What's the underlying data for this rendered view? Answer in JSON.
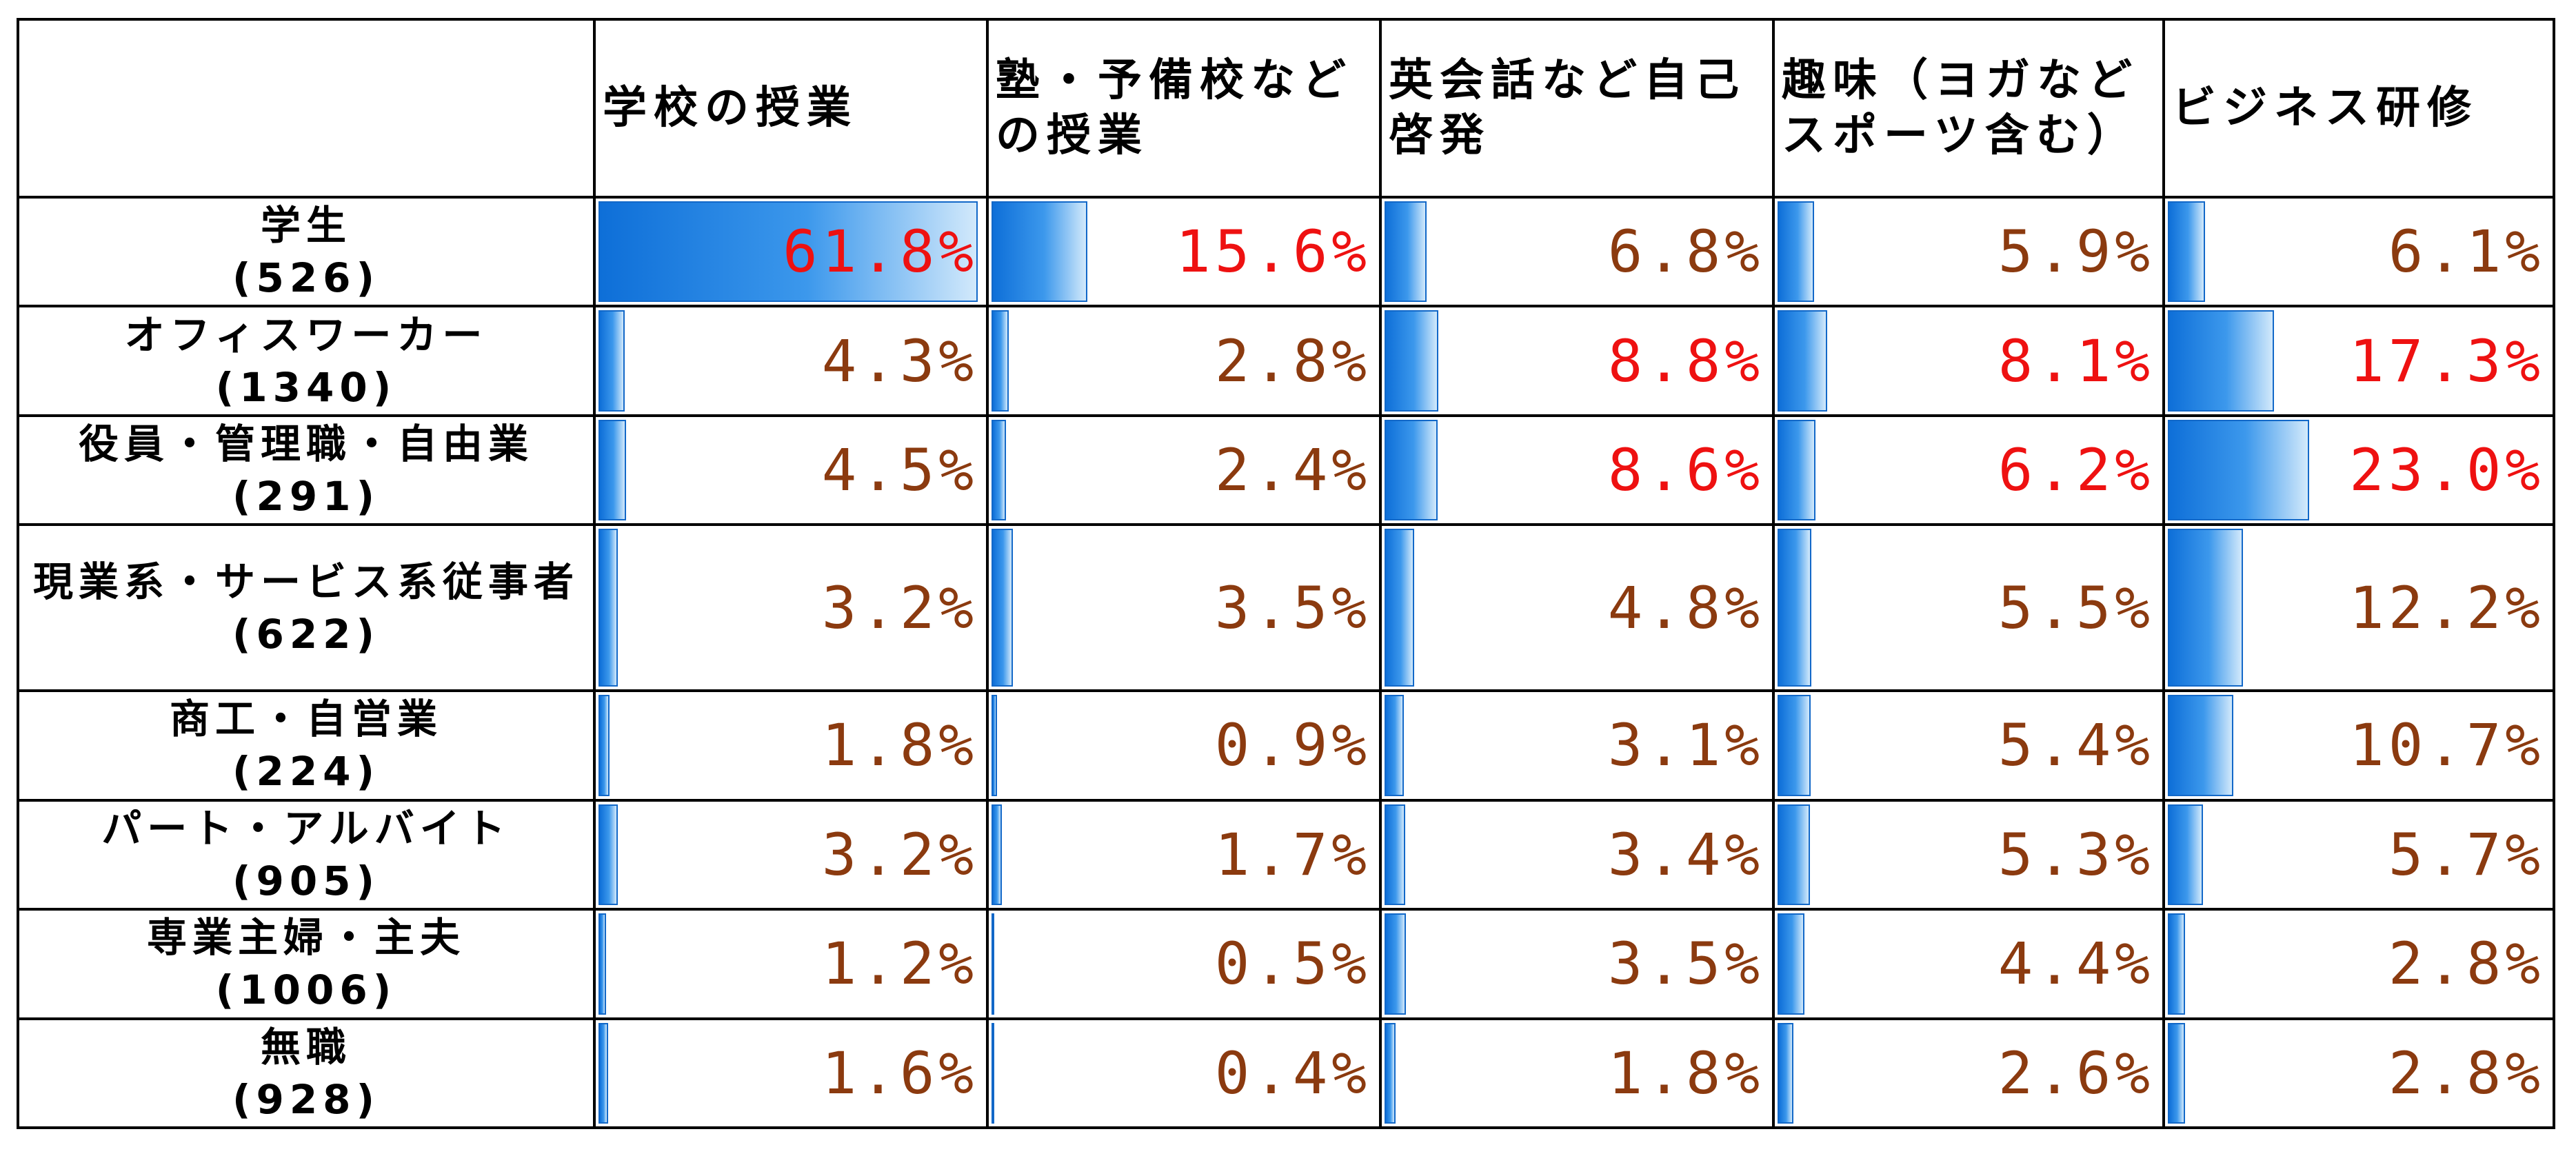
{
  "chart_data": {
    "type": "table",
    "columns": [
      "学校の授業",
      "塾・予備校などの授業",
      "英会話など自己啓発",
      "趣味（ヨガなどスポーツ含む）",
      "ビジネス研修"
    ],
    "rows": [
      {
        "name": "学生",
        "n": "(526)",
        "labels": [
          "61.8%",
          "15.6%",
          "6.8%",
          "5.9%",
          "6.1%"
        ],
        "values": [
          61.8,
          15.6,
          6.8,
          5.9,
          6.1
        ],
        "highlight": [
          true,
          true,
          false,
          false,
          false
        ]
      },
      {
        "name": "オフィスワーカー",
        "n": "(1340)",
        "labels": [
          "4.3%",
          "2.8%",
          "8.8%",
          "8.1%",
          "17.3%"
        ],
        "values": [
          4.3,
          2.8,
          8.8,
          8.1,
          17.3
        ],
        "highlight": [
          false,
          false,
          true,
          true,
          true
        ]
      },
      {
        "name": "役員・管理職・自由業",
        "n": "(291)",
        "labels": [
          "4.5%",
          "2.4%",
          "8.6%",
          "6.2%",
          "23.0%"
        ],
        "values": [
          4.5,
          2.4,
          8.6,
          6.2,
          23.0
        ],
        "highlight": [
          false,
          false,
          true,
          true,
          true
        ]
      },
      {
        "name": "現業系・サービス系従事者",
        "n": "(622)",
        "labels": [
          "3.2%",
          "3.5%",
          "4.8%",
          "5.5%",
          "12.2%"
        ],
        "values": [
          3.2,
          3.5,
          4.8,
          5.5,
          12.2
        ],
        "highlight": [
          false,
          false,
          false,
          false,
          false
        ]
      },
      {
        "name": "商工・自営業",
        "n": "(224)",
        "labels": [
          "1.8%",
          "0.9%",
          "3.1%",
          "5.4%",
          "10.7%"
        ],
        "values": [
          1.8,
          0.9,
          3.1,
          5.4,
          10.7
        ],
        "highlight": [
          false,
          false,
          false,
          false,
          false
        ]
      },
      {
        "name": "パート・アルバイト",
        "n": "(905)",
        "labels": [
          "3.2%",
          "1.7%",
          "3.4%",
          "5.3%",
          "5.7%"
        ],
        "values": [
          3.2,
          1.7,
          3.4,
          5.3,
          5.7
        ],
        "highlight": [
          false,
          false,
          false,
          false,
          false
        ]
      },
      {
        "name": "専業主婦・主夫",
        "n": "(1006)",
        "labels": [
          "1.2%",
          "0.5%",
          "3.5%",
          "4.4%",
          "2.8%"
        ],
        "values": [
          1.2,
          0.5,
          3.5,
          4.4,
          2.8
        ],
        "highlight": [
          false,
          false,
          false,
          false,
          false
        ]
      },
      {
        "name": "無職",
        "n": "(928)",
        "labels": [
          "1.6%",
          "0.4%",
          "1.8%",
          "2.6%",
          "2.8%"
        ],
        "values": [
          1.6,
          0.4,
          1.8,
          2.6,
          2.8
        ],
        "highlight": [
          false,
          false,
          false,
          false,
          false
        ]
      }
    ],
    "bar_max": 61.8
  },
  "colors": {
    "highlight_text": "#ee1111",
    "normal_text": "#8b3a0f",
    "bar": "#1a7be0",
    "border": "#000000"
  }
}
